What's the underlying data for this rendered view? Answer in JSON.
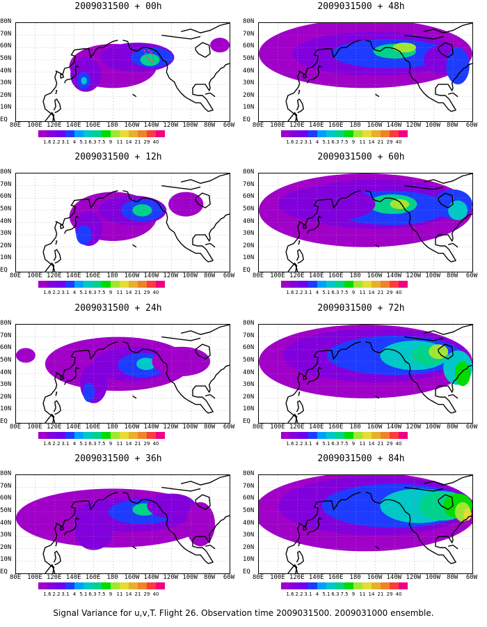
{
  "panels": [
    {
      "title": "2009031500 + 00h",
      "stage": 0
    },
    {
      "title": "2009031500 + 48h",
      "stage": 4
    },
    {
      "title": "2009031500 + 12h",
      "stage": 1
    },
    {
      "title": "2009031500 + 60h",
      "stage": 5
    },
    {
      "title": "2009031500 + 24h",
      "stage": 2
    },
    {
      "title": "2009031500 + 72h",
      "stage": 6
    },
    {
      "title": "2009031500 + 36h",
      "stage": 3
    },
    {
      "title": "2009031500 + 84h",
      "stage": 7
    }
  ],
  "lat_labels": [
    "80N",
    "70N",
    "60N",
    "50N",
    "40N",
    "30N",
    "20N",
    "10N",
    "EQ"
  ],
  "lon_labels": [
    "80E",
    "100E",
    "120E",
    "140E",
    "160E",
    "180",
    "160W",
    "140W",
    "120W",
    "100W",
    "80W",
    "60W"
  ],
  "colorbar": {
    "labels": [
      "1.6",
      "2.2",
      "3.1",
      "4",
      "5.1",
      "6.3",
      "7.5",
      "9",
      "11",
      "14",
      "21",
      "29",
      "40"
    ],
    "colors": [
      "#a000c8",
      "#8200dc",
      "#6e00f0",
      "#1e3cff",
      "#00a0ff",
      "#00c8c8",
      "#00d28c",
      "#00dc00",
      "#a0e632",
      "#e6dc32",
      "#e6af2d",
      "#f08228",
      "#fa3c3c",
      "#f00082"
    ]
  },
  "footer": "Signal Variance for u,v,T. Flight 26. Observation time 2009031500. 2009031000 ensemble."
}
